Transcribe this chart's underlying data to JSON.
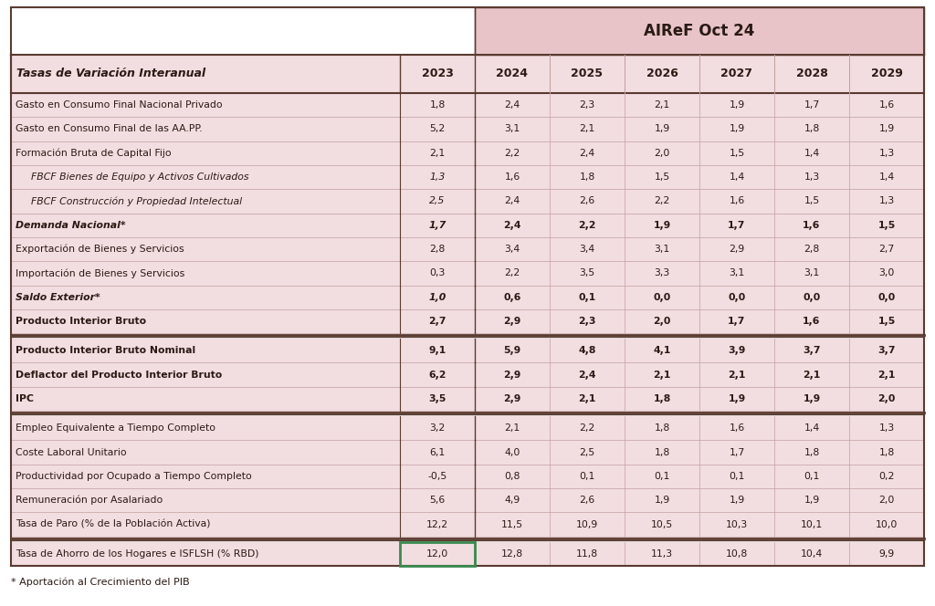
{
  "title": "AIReF Oct 24",
  "col_header": [
    "Tasas de Variación Interanual",
    "2023",
    "2024",
    "2025",
    "2026",
    "2027",
    "2028",
    "2029"
  ],
  "rows": [
    {
      "label": "Gasto en Consumo Final Nacional Privado",
      "bold": false,
      "italic": false,
      "indent": false,
      "values": [
        "1,8",
        "2,4",
        "2,3",
        "2,1",
        "1,9",
        "1,7",
        "1,6"
      ],
      "separator_before": false
    },
    {
      "label": "Gasto en Consumo Final de las AA.PP.",
      "bold": false,
      "italic": false,
      "indent": false,
      "values": [
        "5,2",
        "3,1",
        "2,1",
        "1,9",
        "1,9",
        "1,8",
        "1,9"
      ],
      "separator_before": false
    },
    {
      "label": "Formación Bruta de Capital Fijo",
      "bold": false,
      "italic": false,
      "indent": false,
      "values": [
        "2,1",
        "2,2",
        "2,4",
        "2,0",
        "1,5",
        "1,4",
        "1,3"
      ],
      "separator_before": false
    },
    {
      "label": "FBCF Bienes de Equipo y Activos Cultivados",
      "bold": false,
      "italic": true,
      "indent": true,
      "values": [
        "1,3",
        "1,6",
        "1,8",
        "1,5",
        "1,4",
        "1,3",
        "1,4"
      ],
      "separator_before": false
    },
    {
      "label": "FBCF Construcción y Propiedad Intelectual",
      "bold": false,
      "italic": true,
      "indent": true,
      "values": [
        "2,5",
        "2,4",
        "2,6",
        "2,2",
        "1,6",
        "1,5",
        "1,3"
      ],
      "separator_before": false
    },
    {
      "label": "Demanda Nacional*",
      "bold": true,
      "italic": true,
      "indent": false,
      "values": [
        "1,7",
        "2,4",
        "2,2",
        "1,9",
        "1,7",
        "1,6",
        "1,5"
      ],
      "separator_before": false
    },
    {
      "label": "Exportación de Bienes y Servicios",
      "bold": false,
      "italic": false,
      "indent": false,
      "values": [
        "2,8",
        "3,4",
        "3,4",
        "3,1",
        "2,9",
        "2,8",
        "2,7"
      ],
      "separator_before": false
    },
    {
      "label": "Importación de Bienes y Servicios",
      "bold": false,
      "italic": false,
      "indent": false,
      "values": [
        "0,3",
        "2,2",
        "3,5",
        "3,3",
        "3,1",
        "3,1",
        "3,0"
      ],
      "separator_before": false
    },
    {
      "label": "Saldo Exterior*",
      "bold": true,
      "italic": true,
      "indent": false,
      "values": [
        "1,0",
        "0,6",
        "0,1",
        "0,0",
        "0,0",
        "0,0",
        "0,0"
      ],
      "separator_before": false
    },
    {
      "label": "Producto Interior Bruto",
      "bold": true,
      "italic": false,
      "indent": false,
      "values": [
        "2,7",
        "2,9",
        "2,3",
        "2,0",
        "1,7",
        "1,6",
        "1,5"
      ],
      "separator_before": false
    },
    {
      "label": "Producto Interior Bruto Nominal",
      "bold": true,
      "italic": false,
      "indent": false,
      "values": [
        "9,1",
        "5,9",
        "4,8",
        "4,1",
        "3,9",
        "3,7",
        "3,7"
      ],
      "separator_before": true
    },
    {
      "label": "Deflactor del Producto Interior Bruto",
      "bold": true,
      "italic": false,
      "indent": false,
      "values": [
        "6,2",
        "2,9",
        "2,4",
        "2,1",
        "2,1",
        "2,1",
        "2,1"
      ],
      "separator_before": false
    },
    {
      "label": "IPC",
      "bold": true,
      "italic": false,
      "indent": false,
      "values": [
        "3,5",
        "2,9",
        "2,1",
        "1,8",
        "1,9",
        "1,9",
        "2,0"
      ],
      "separator_before": false
    },
    {
      "label": "Empleo Equivalente a Tiempo Completo",
      "bold": false,
      "italic": false,
      "indent": false,
      "values": [
        "3,2",
        "2,1",
        "2,2",
        "1,8",
        "1,6",
        "1,4",
        "1,3"
      ],
      "separator_before": true
    },
    {
      "label": "Coste Laboral Unitario",
      "bold": false,
      "italic": false,
      "indent": false,
      "values": [
        "6,1",
        "4,0",
        "2,5",
        "1,8",
        "1,7",
        "1,8",
        "1,8"
      ],
      "separator_before": false
    },
    {
      "label": "Productividad por Ocupado a Tiempo Completo",
      "bold": false,
      "italic": false,
      "indent": false,
      "values": [
        "-0,5",
        "0,8",
        "0,1",
        "0,1",
        "0,1",
        "0,1",
        "0,2"
      ],
      "separator_before": false
    },
    {
      "label": "Remuneración por Asalariado",
      "bold": false,
      "italic": false,
      "indent": false,
      "values": [
        "5,6",
        "4,9",
        "2,6",
        "1,9",
        "1,9",
        "1,9",
        "2,0"
      ],
      "separator_before": false
    },
    {
      "label": "Tasa de Paro (% de la Población Activa)",
      "bold": false,
      "italic": false,
      "indent": false,
      "values": [
        "12,2",
        "11,5",
        "10,9",
        "10,5",
        "10,3",
        "10,1",
        "10,0"
      ],
      "separator_before": false
    },
    {
      "label": "Tasa de Ahorro de los Hogares e ISFLSH (% RBD)",
      "bold": false,
      "italic": false,
      "indent": false,
      "values": [
        "12,0",
        "12,8",
        "11,8",
        "11,3",
        "10,8",
        "10,4",
        "9,9"
      ],
      "separator_before": true
    }
  ],
  "footnote": "* Aportación al Crecimiento del PIB",
  "colors": {
    "bg_light": "#f2dde0",
    "bg_airef": "#e8c4c8",
    "title_bg": "#e8c4c8",
    "white": "#ffffff",
    "text": "#2a1a14",
    "border_dark": "#5a3a30",
    "border_light": "#c4a0a0",
    "green_border": "#3a8a50"
  },
  "figsize": [
    10.24,
    6.64
  ],
  "dpi": 100
}
